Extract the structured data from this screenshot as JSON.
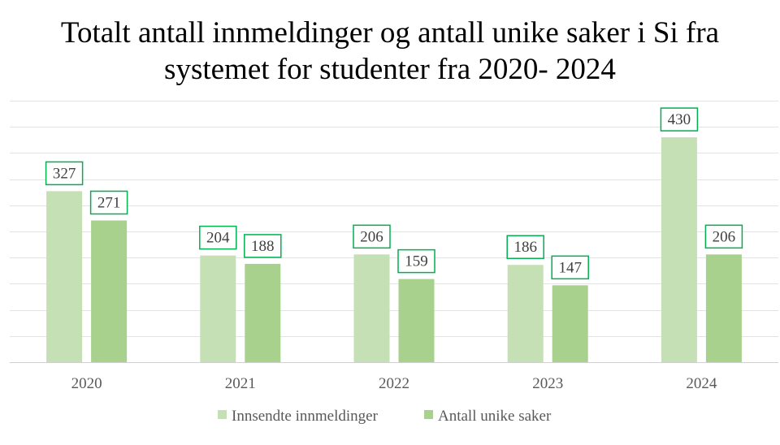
{
  "chart_data": {
    "type": "bar",
    "title_line1": "Totalt antall innmeldinger og antall unike saker i Si fra",
    "title_line2": "systemet for studenter fra 2020- 2024",
    "categories": [
      "2020",
      "2021",
      "2022",
      "2023",
      "2024"
    ],
    "series": [
      {
        "name": "Innsendte innmeldinger",
        "values": [
          327,
          204,
          206,
          186,
          430
        ],
        "color": "#c5e0b4"
      },
      {
        "name": "Antall unike saker",
        "values": [
          271,
          188,
          159,
          147,
          206
        ],
        "color": "#a9d18e"
      }
    ],
    "ylim": [
      0,
      500
    ],
    "grid": true,
    "data_label_border_color": "#00b050",
    "legend_position": "bottom"
  }
}
